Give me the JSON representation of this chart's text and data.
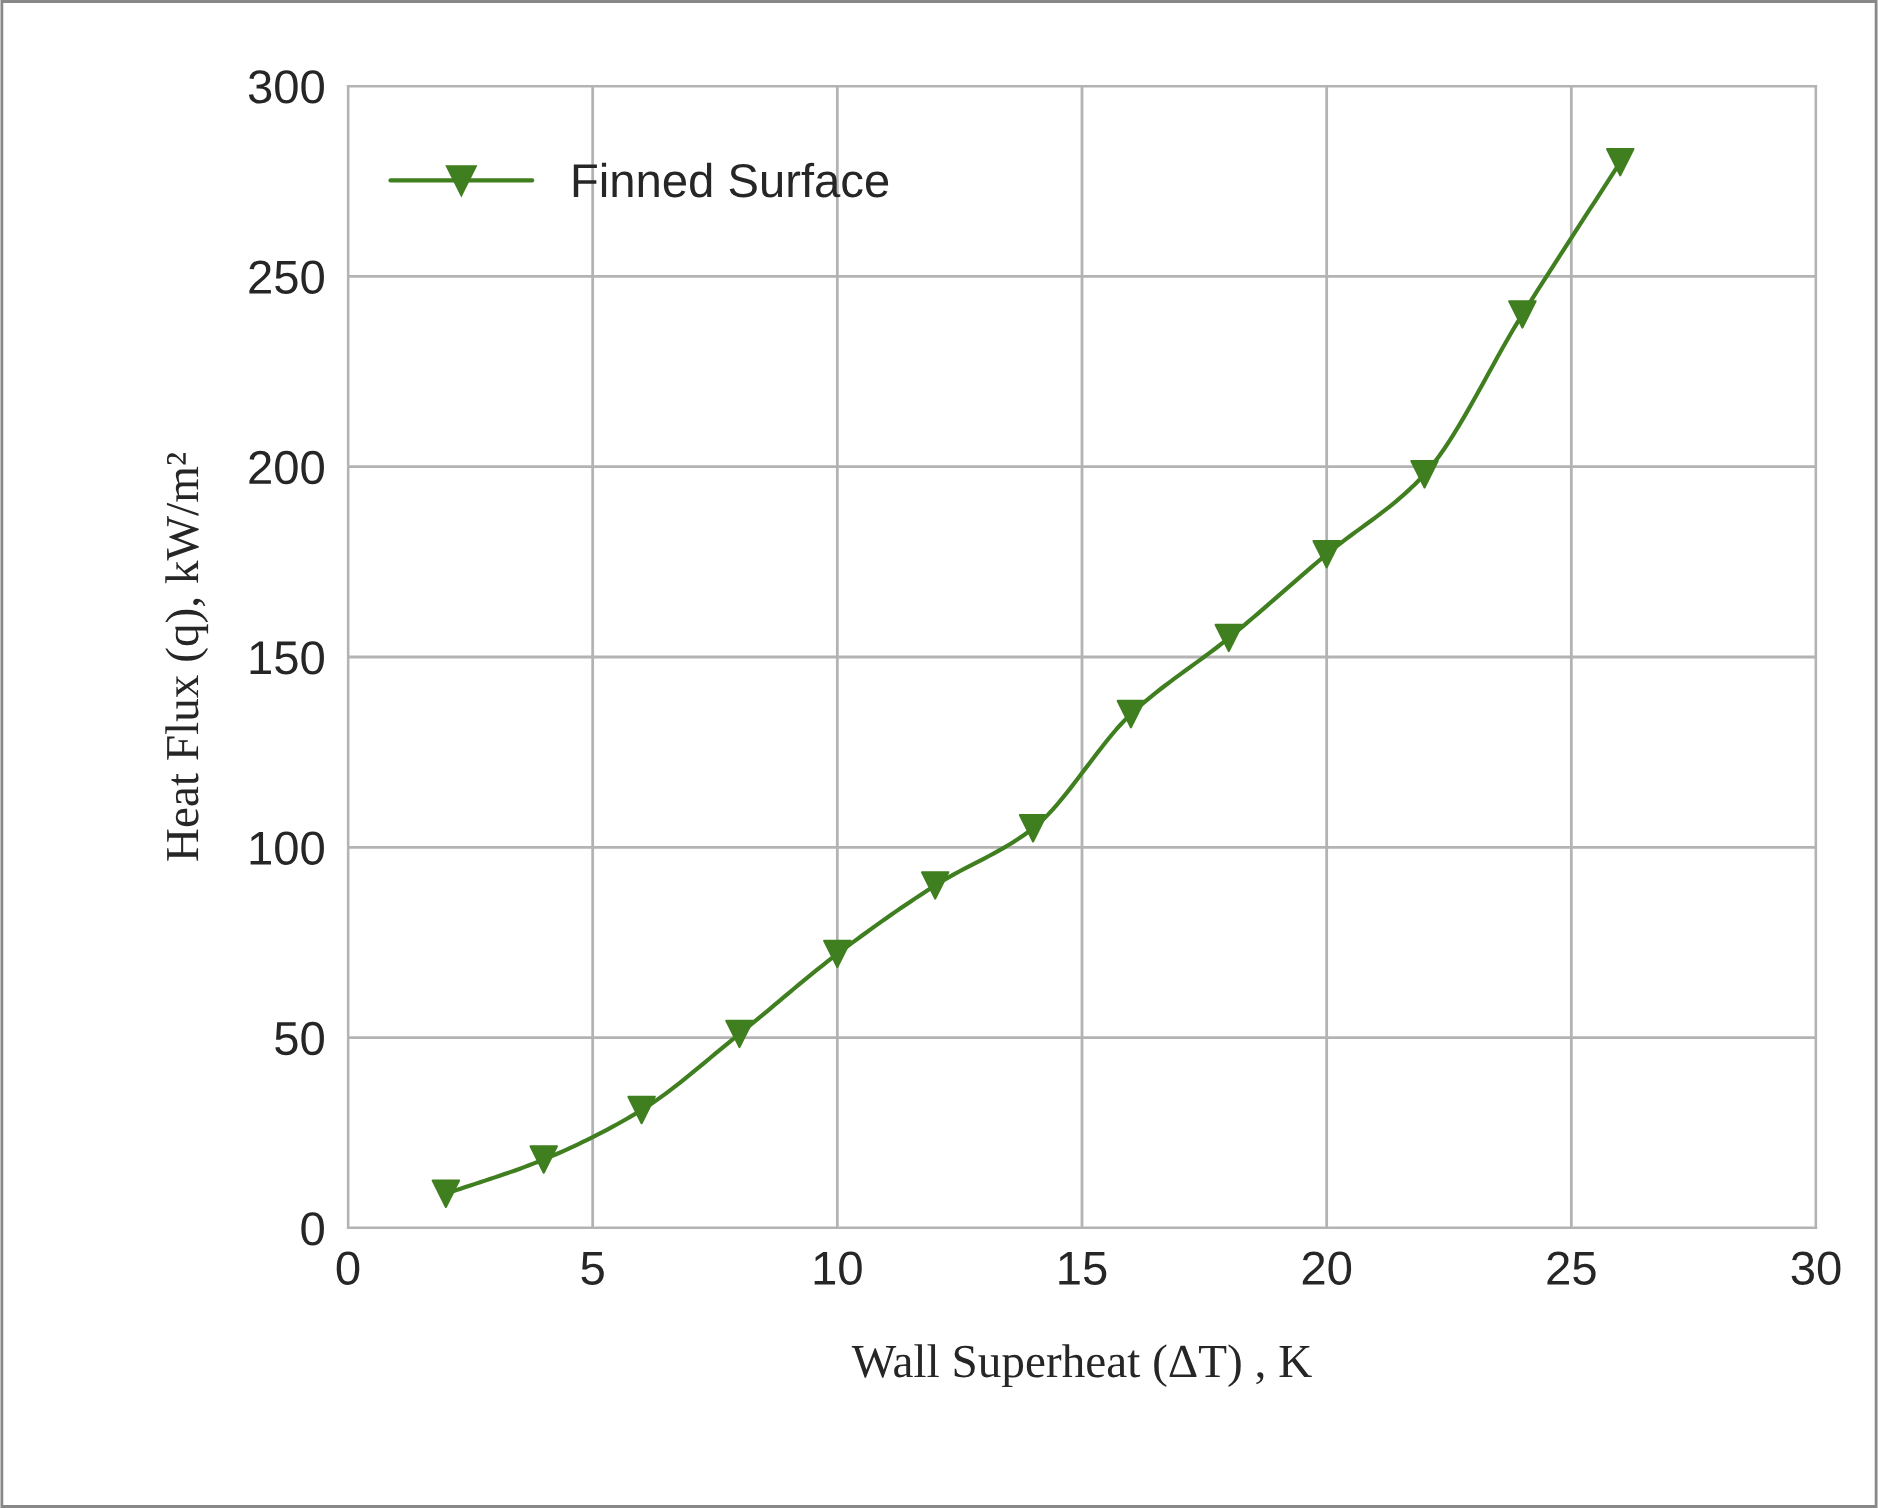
{
  "chart_data": {
    "type": "line",
    "xlabel": "Wall Superheat (ΔT) , K",
    "ylabel": "Heat Flux (q), kW/m²",
    "x": [
      2,
      4,
      6,
      8,
      10,
      12,
      14,
      16,
      18,
      20,
      22,
      24,
      26
    ],
    "series": [
      {
        "name": "Finned Surface",
        "color": "#3f7f1f",
        "values": [
          9,
          18,
          31,
          51,
          72,
          90,
          105,
          135,
          155,
          177,
          198,
          240,
          280
        ]
      }
    ],
    "xlim": [
      0,
      30
    ],
    "xticks": [
      0,
      5,
      10,
      15,
      20,
      25,
      30
    ],
    "ylim": [
      0,
      300
    ],
    "yticks": [
      0,
      50,
      100,
      150,
      200,
      250,
      300
    ],
    "grid": true,
    "legend": "top left",
    "marker": "triangle",
    "line_style": "solid"
  }
}
